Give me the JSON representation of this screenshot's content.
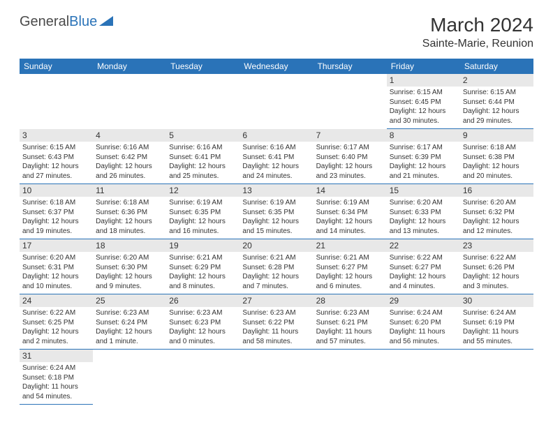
{
  "logo": {
    "part1": "General",
    "part2": "Blue"
  },
  "title": "March 2024",
  "location": "Sainte-Marie, Reunion",
  "colors": {
    "header_bg": "#2a73b8",
    "header_text": "#ffffff",
    "daynum_bg": "#e8e8e8",
    "border": "#2a73b8",
    "text": "#333333",
    "background": "#ffffff"
  },
  "weekdays": [
    "Sunday",
    "Monday",
    "Tuesday",
    "Wednesday",
    "Thursday",
    "Friday",
    "Saturday"
  ],
  "weeks": [
    [
      null,
      null,
      null,
      null,
      null,
      {
        "num": "1",
        "sunrise": "Sunrise: 6:15 AM",
        "sunset": "Sunset: 6:45 PM",
        "daylight": "Daylight: 12 hours and 30 minutes."
      },
      {
        "num": "2",
        "sunrise": "Sunrise: 6:15 AM",
        "sunset": "Sunset: 6:44 PM",
        "daylight": "Daylight: 12 hours and 29 minutes."
      }
    ],
    [
      {
        "num": "3",
        "sunrise": "Sunrise: 6:15 AM",
        "sunset": "Sunset: 6:43 PM",
        "daylight": "Daylight: 12 hours and 27 minutes."
      },
      {
        "num": "4",
        "sunrise": "Sunrise: 6:16 AM",
        "sunset": "Sunset: 6:42 PM",
        "daylight": "Daylight: 12 hours and 26 minutes."
      },
      {
        "num": "5",
        "sunrise": "Sunrise: 6:16 AM",
        "sunset": "Sunset: 6:41 PM",
        "daylight": "Daylight: 12 hours and 25 minutes."
      },
      {
        "num": "6",
        "sunrise": "Sunrise: 6:16 AM",
        "sunset": "Sunset: 6:41 PM",
        "daylight": "Daylight: 12 hours and 24 minutes."
      },
      {
        "num": "7",
        "sunrise": "Sunrise: 6:17 AM",
        "sunset": "Sunset: 6:40 PM",
        "daylight": "Daylight: 12 hours and 23 minutes."
      },
      {
        "num": "8",
        "sunrise": "Sunrise: 6:17 AM",
        "sunset": "Sunset: 6:39 PM",
        "daylight": "Daylight: 12 hours and 21 minutes."
      },
      {
        "num": "9",
        "sunrise": "Sunrise: 6:18 AM",
        "sunset": "Sunset: 6:38 PM",
        "daylight": "Daylight: 12 hours and 20 minutes."
      }
    ],
    [
      {
        "num": "10",
        "sunrise": "Sunrise: 6:18 AM",
        "sunset": "Sunset: 6:37 PM",
        "daylight": "Daylight: 12 hours and 19 minutes."
      },
      {
        "num": "11",
        "sunrise": "Sunrise: 6:18 AM",
        "sunset": "Sunset: 6:36 PM",
        "daylight": "Daylight: 12 hours and 18 minutes."
      },
      {
        "num": "12",
        "sunrise": "Sunrise: 6:19 AM",
        "sunset": "Sunset: 6:35 PM",
        "daylight": "Daylight: 12 hours and 16 minutes."
      },
      {
        "num": "13",
        "sunrise": "Sunrise: 6:19 AM",
        "sunset": "Sunset: 6:35 PM",
        "daylight": "Daylight: 12 hours and 15 minutes."
      },
      {
        "num": "14",
        "sunrise": "Sunrise: 6:19 AM",
        "sunset": "Sunset: 6:34 PM",
        "daylight": "Daylight: 12 hours and 14 minutes."
      },
      {
        "num": "15",
        "sunrise": "Sunrise: 6:20 AM",
        "sunset": "Sunset: 6:33 PM",
        "daylight": "Daylight: 12 hours and 13 minutes."
      },
      {
        "num": "16",
        "sunrise": "Sunrise: 6:20 AM",
        "sunset": "Sunset: 6:32 PM",
        "daylight": "Daylight: 12 hours and 12 minutes."
      }
    ],
    [
      {
        "num": "17",
        "sunrise": "Sunrise: 6:20 AM",
        "sunset": "Sunset: 6:31 PM",
        "daylight": "Daylight: 12 hours and 10 minutes."
      },
      {
        "num": "18",
        "sunrise": "Sunrise: 6:20 AM",
        "sunset": "Sunset: 6:30 PM",
        "daylight": "Daylight: 12 hours and 9 minutes."
      },
      {
        "num": "19",
        "sunrise": "Sunrise: 6:21 AM",
        "sunset": "Sunset: 6:29 PM",
        "daylight": "Daylight: 12 hours and 8 minutes."
      },
      {
        "num": "20",
        "sunrise": "Sunrise: 6:21 AM",
        "sunset": "Sunset: 6:28 PM",
        "daylight": "Daylight: 12 hours and 7 minutes."
      },
      {
        "num": "21",
        "sunrise": "Sunrise: 6:21 AM",
        "sunset": "Sunset: 6:27 PM",
        "daylight": "Daylight: 12 hours and 6 minutes."
      },
      {
        "num": "22",
        "sunrise": "Sunrise: 6:22 AM",
        "sunset": "Sunset: 6:27 PM",
        "daylight": "Daylight: 12 hours and 4 minutes."
      },
      {
        "num": "23",
        "sunrise": "Sunrise: 6:22 AM",
        "sunset": "Sunset: 6:26 PM",
        "daylight": "Daylight: 12 hours and 3 minutes."
      }
    ],
    [
      {
        "num": "24",
        "sunrise": "Sunrise: 6:22 AM",
        "sunset": "Sunset: 6:25 PM",
        "daylight": "Daylight: 12 hours and 2 minutes."
      },
      {
        "num": "25",
        "sunrise": "Sunrise: 6:23 AM",
        "sunset": "Sunset: 6:24 PM",
        "daylight": "Daylight: 12 hours and 1 minute."
      },
      {
        "num": "26",
        "sunrise": "Sunrise: 6:23 AM",
        "sunset": "Sunset: 6:23 PM",
        "daylight": "Daylight: 12 hours and 0 minutes."
      },
      {
        "num": "27",
        "sunrise": "Sunrise: 6:23 AM",
        "sunset": "Sunset: 6:22 PM",
        "daylight": "Daylight: 11 hours and 58 minutes."
      },
      {
        "num": "28",
        "sunrise": "Sunrise: 6:23 AM",
        "sunset": "Sunset: 6:21 PM",
        "daylight": "Daylight: 11 hours and 57 minutes."
      },
      {
        "num": "29",
        "sunrise": "Sunrise: 6:24 AM",
        "sunset": "Sunset: 6:20 PM",
        "daylight": "Daylight: 11 hours and 56 minutes."
      },
      {
        "num": "30",
        "sunrise": "Sunrise: 6:24 AM",
        "sunset": "Sunset: 6:19 PM",
        "daylight": "Daylight: 11 hours and 55 minutes."
      }
    ],
    [
      {
        "num": "31",
        "sunrise": "Sunrise: 6:24 AM",
        "sunset": "Sunset: 6:18 PM",
        "daylight": "Daylight: 11 hours and 54 minutes."
      },
      null,
      null,
      null,
      null,
      null,
      null
    ]
  ]
}
